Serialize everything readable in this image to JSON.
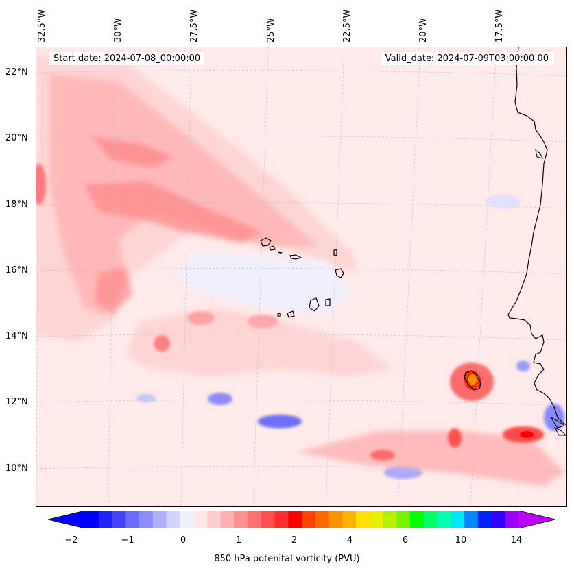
{
  "header": {
    "start_date": "Start date: 2024-07-08_00:00:00",
    "valid_date": "Valid_date: 2024-07-09T03:00:00.00"
  },
  "axes": {
    "lon_labels": [
      "32.5°W",
      "30°W",
      "27.5°W",
      "25°W",
      "22.5°W",
      "20°W",
      "17.5°W"
    ],
    "lat_labels": [
      "22°N",
      "20°N",
      "18°N",
      "16°N",
      "14°N",
      "12°N",
      "10°N"
    ]
  },
  "colorbar": {
    "title": "850 hPa potenital vorticity (PVU)",
    "tick_labels": [
      "−2",
      "−1",
      "0",
      "1",
      "2",
      "4",
      "6",
      "10",
      "14"
    ],
    "colors": [
      "#0000ff",
      "#2222ff",
      "#4444ff",
      "#6a6aff",
      "#8c8cff",
      "#b0b0ff",
      "#d4d4ff",
      "#eeeeff",
      "#ffe6e6",
      "#ffcfcf",
      "#ffb0b0",
      "#ff9090",
      "#ff7070",
      "#ff5050",
      "#ff2e2e",
      "#ff0000",
      "#ff4400",
      "#ff6a00",
      "#ff9000",
      "#ffb400",
      "#ffe000",
      "#e8f000",
      "#b4f000",
      "#78f000",
      "#00ff00",
      "#00ff66",
      "#00ffb4",
      "#00e8ff",
      "#0088ff",
      "#0022ff",
      "#3300ff",
      "#9900ff"
    ],
    "under_color": "#0000ff",
    "over_color": "#bb00ff"
  }
}
